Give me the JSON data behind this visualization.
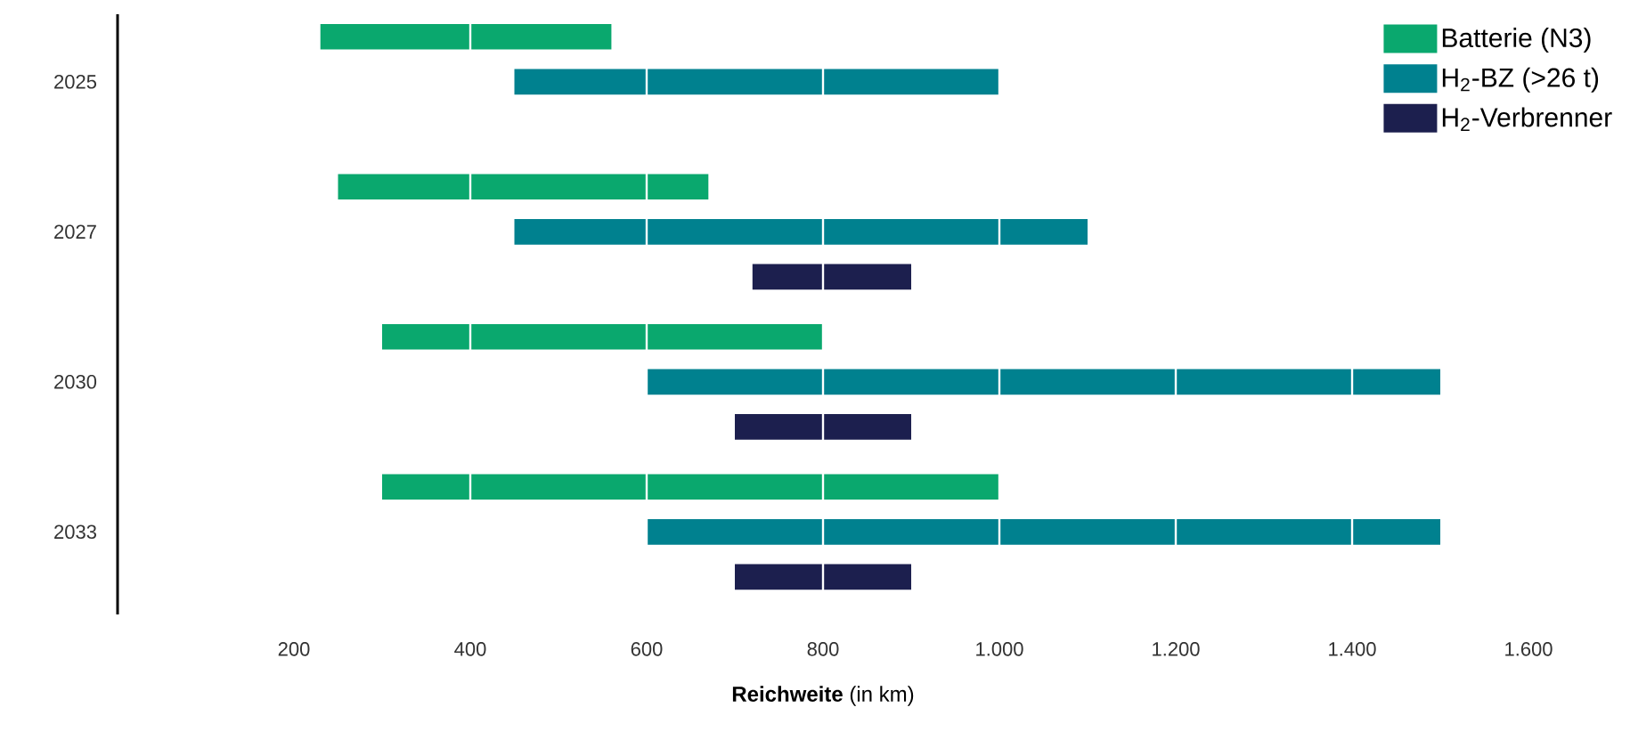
{
  "chart_data": {
    "type": "bar",
    "orientation": "horizontal",
    "xlabel": "**Reichweite** (in km)",
    "categories": [
      "2025",
      "2027",
      "2030",
      "2033"
    ],
    "series": [
      {
        "name": "Batterie (N3)",
        "color": "#0aa86e",
        "base": [
          230,
          250,
          300,
          300
        ],
        "values": [
          330,
          420,
          500,
          700
        ]
      },
      {
        "name": "H$_{2}$-BZ (>26 t)",
        "color": "#00818f",
        "base": [
          450,
          450,
          600,
          600
        ],
        "values": [
          550,
          650,
          900,
          900
        ]
      },
      {
        "name": "H$_{2}$-Verbrenner",
        "color": "#1c1f4e",
        "base": [
          null,
          720,
          700,
          700
        ],
        "values": [
          null,
          180,
          200,
          200
        ]
      }
    ],
    "xlim": [
      0,
      1600
    ],
    "xticks": [
      {
        "value": 200,
        "label": "200"
      },
      {
        "value": 400,
        "label": "400"
      },
      {
        "value": 600,
        "label": "600"
      },
      {
        "value": 800,
        "label": "800"
      },
      {
        "value": 1000,
        "label": "1.000"
      },
      {
        "value": 1200,
        "label": "1.200"
      },
      {
        "value": 1400,
        "label": "1.400"
      },
      {
        "value": 1600,
        "label": "1.600"
      }
    ],
    "grid": "x",
    "legend": "top right"
  }
}
